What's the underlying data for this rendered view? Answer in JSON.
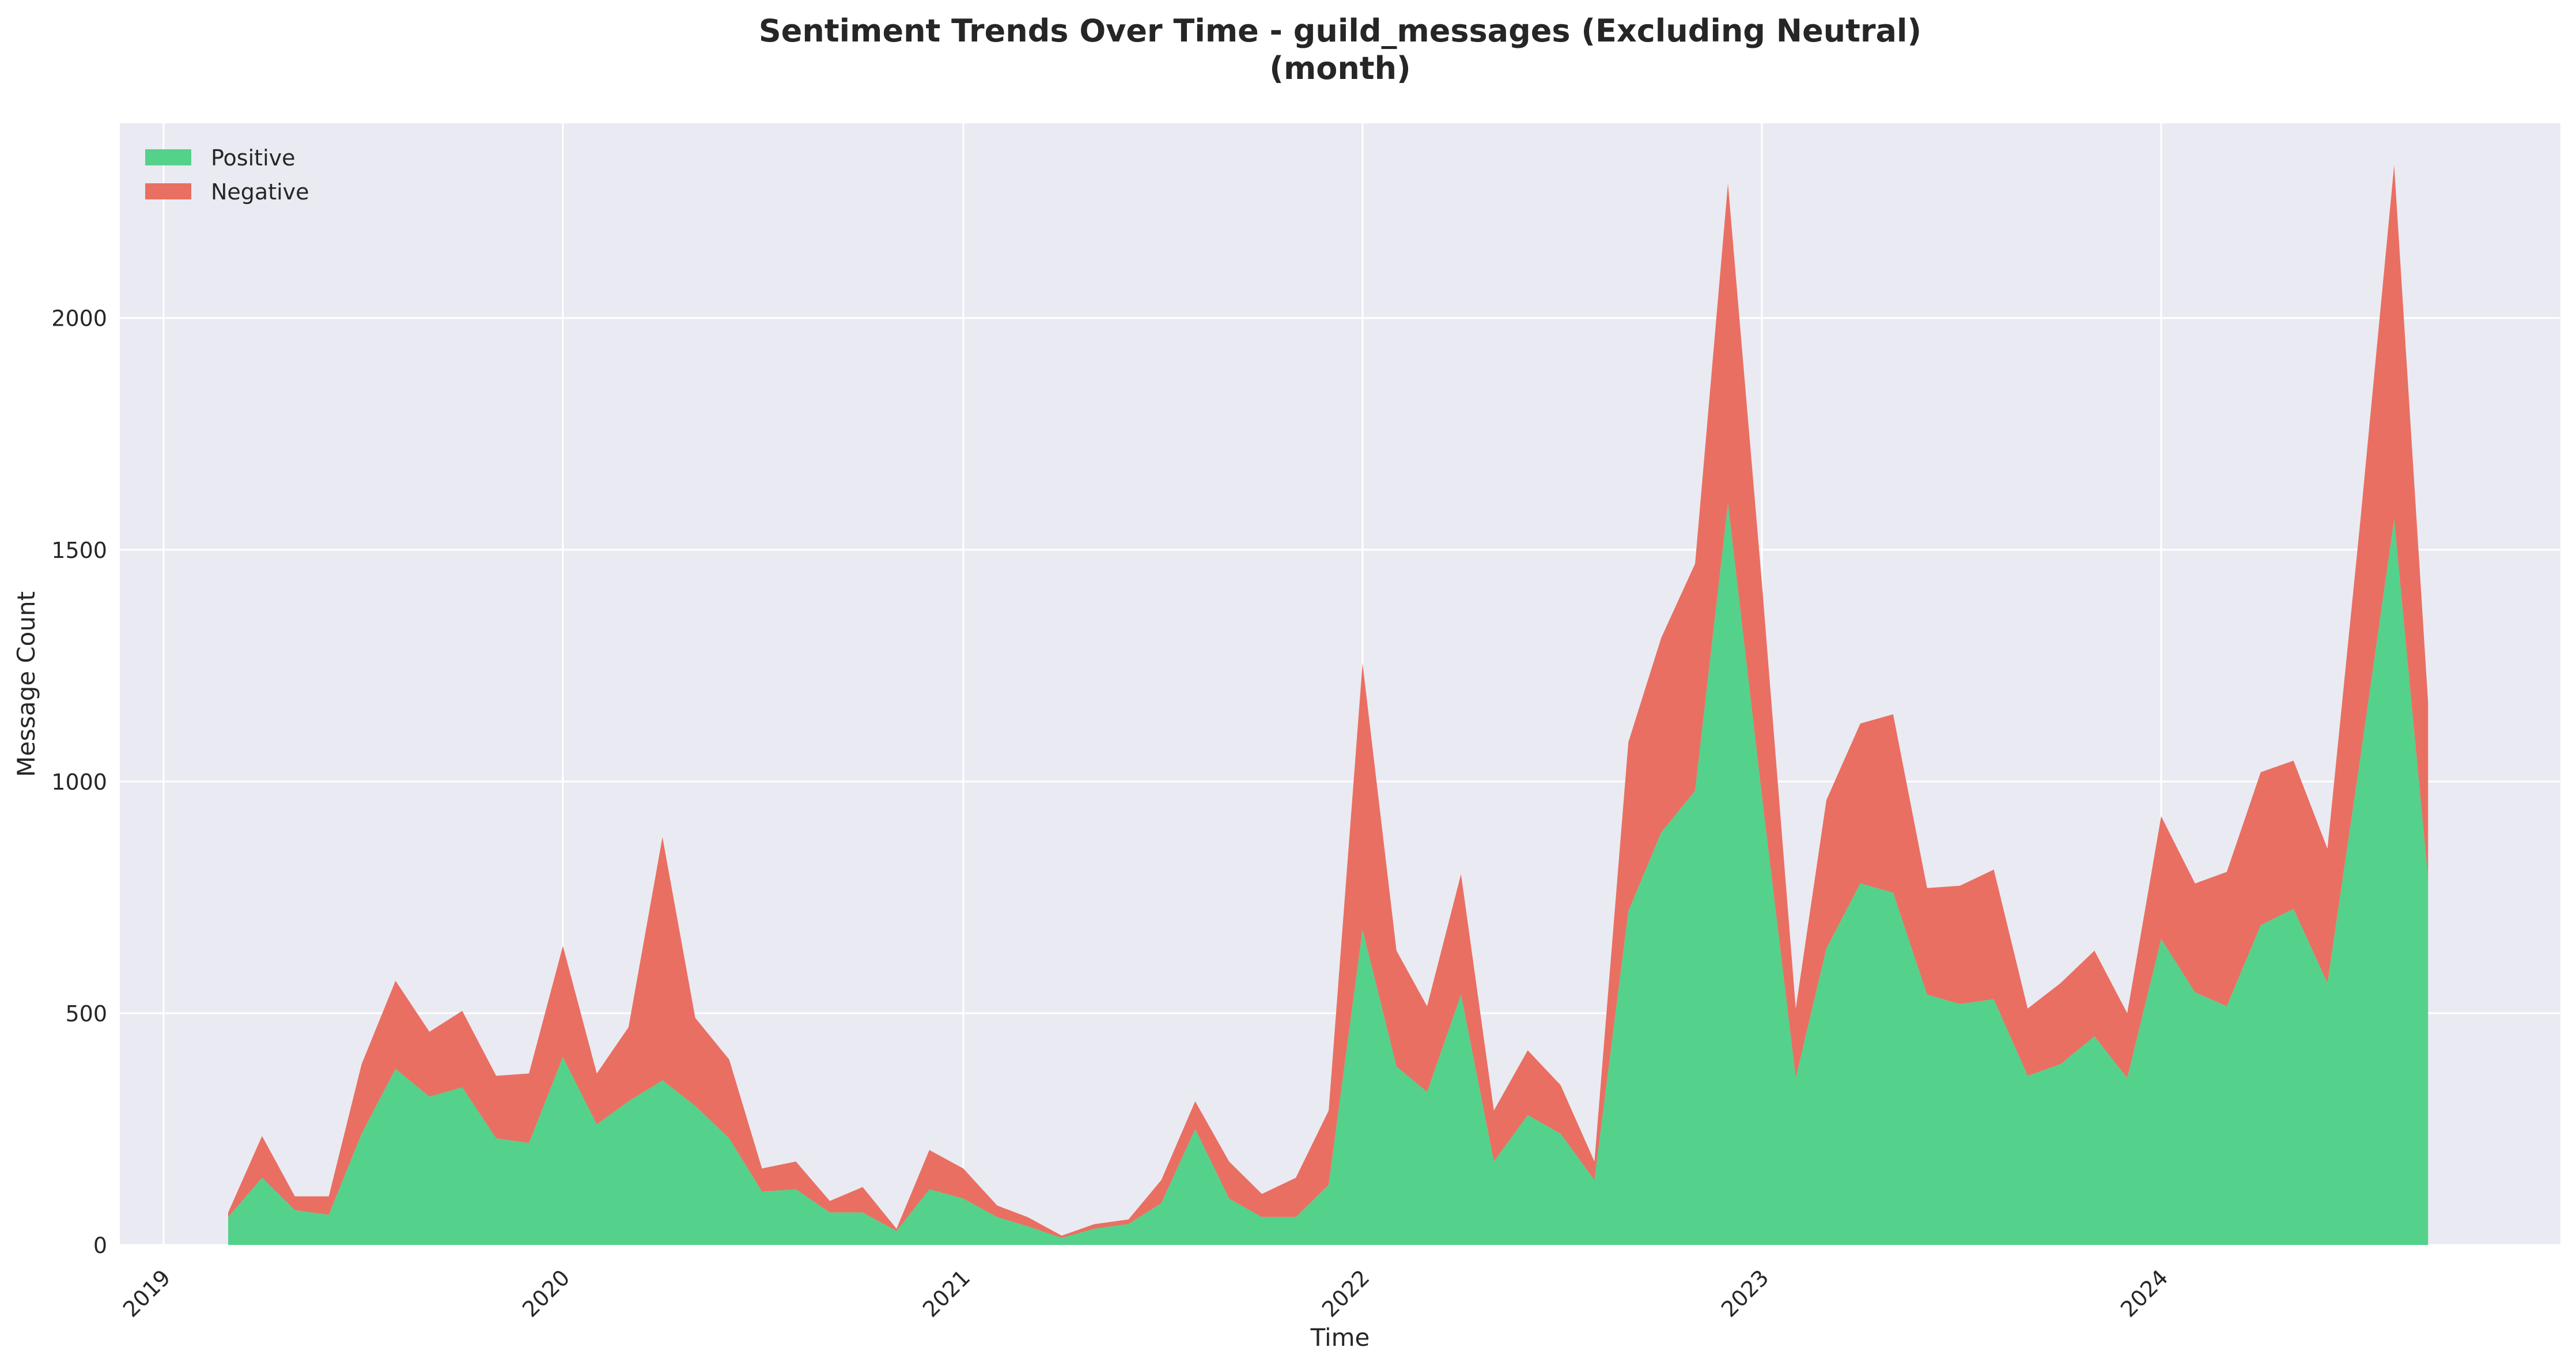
{
  "chart_data": {
    "type": "area",
    "stacked": true,
    "title": "Sentiment Trends Over Time - guild_messages (Excluding Neutral)",
    "subtitle": "(month)",
    "xlabel": "Time",
    "ylabel": "Message Count",
    "xlim": [
      "2018-11-22",
      "2024-12-31"
    ],
    "ylim": [
      0,
      2420
    ],
    "x_ticks": [
      "2019",
      "2020",
      "2021",
      "2022",
      "2023",
      "2024"
    ],
    "y_ticks": [
      "0",
      "500",
      "1000",
      "1500",
      "2000"
    ],
    "grid": true,
    "legend_position": "top-left",
    "colors": {
      "positive": "#54d18b",
      "negative": "#e96f62",
      "background": "#eaeaf2",
      "grid": "#ffffff"
    },
    "x": [
      "2019-03",
      "2019-04",
      "2019-05",
      "2019-06",
      "2019-07",
      "2019-08",
      "2019-09",
      "2019-10",
      "2019-11",
      "2019-12",
      "2020-01",
      "2020-02",
      "2020-03",
      "2020-04",
      "2020-05",
      "2020-06",
      "2020-07",
      "2020-08",
      "2020-09",
      "2020-10",
      "2020-11",
      "2020-12",
      "2021-01",
      "2021-02",
      "2021-03",
      "2021-04",
      "2021-05",
      "2021-06",
      "2021-07",
      "2021-08",
      "2021-09",
      "2021-10",
      "2021-11",
      "2021-12",
      "2022-01",
      "2022-02",
      "2022-03",
      "2022-04",
      "2022-05",
      "2022-06",
      "2022-07",
      "2022-08",
      "2022-09",
      "2022-10",
      "2022-11",
      "2022-12",
      "2023-01",
      "2023-02",
      "2023-03",
      "2023-04",
      "2023-05",
      "2023-06",
      "2023-07",
      "2023-08",
      "2023-09",
      "2023-10",
      "2023-11",
      "2023-12",
      "2024-01",
      "2024-02",
      "2024-03",
      "2024-04",
      "2024-05",
      "2024-06",
      "2024-07",
      "2024-08",
      "2024-09"
    ],
    "series": [
      {
        "name": "Positive",
        "values": [
          60,
          145,
          75,
          65,
          240,
          380,
          320,
          340,
          230,
          220,
          405,
          260,
          310,
          355,
          300,
          230,
          115,
          120,
          70,
          70,
          30,
          120,
          100,
          60,
          40,
          15,
          35,
          45,
          90,
          250,
          100,
          60,
          60,
          130,
          680,
          385,
          330,
          540,
          180,
          280,
          240,
          140,
          720,
          890,
          980,
          1600,
          970,
          360,
          640,
          780,
          760,
          540,
          520,
          530,
          365,
          390,
          450,
          360,
          660,
          545,
          515,
          690,
          725,
          565,
          1050,
          1565,
          790
        ]
      },
      {
        "name": "Negative",
        "values": [
          10,
          90,
          30,
          40,
          150,
          190,
          140,
          165,
          135,
          150,
          240,
          110,
          160,
          525,
          190,
          170,
          50,
          60,
          25,
          55,
          5,
          85,
          65,
          25,
          20,
          5,
          10,
          10,
          50,
          60,
          80,
          50,
          85,
          160,
          575,
          250,
          185,
          260,
          110,
          140,
          105,
          40,
          365,
          420,
          490,
          690,
          460,
          150,
          320,
          345,
          385,
          230,
          255,
          280,
          145,
          175,
          185,
          140,
          265,
          235,
          290,
          330,
          320,
          290,
          510,
          765,
          380
        ]
      }
    ]
  }
}
